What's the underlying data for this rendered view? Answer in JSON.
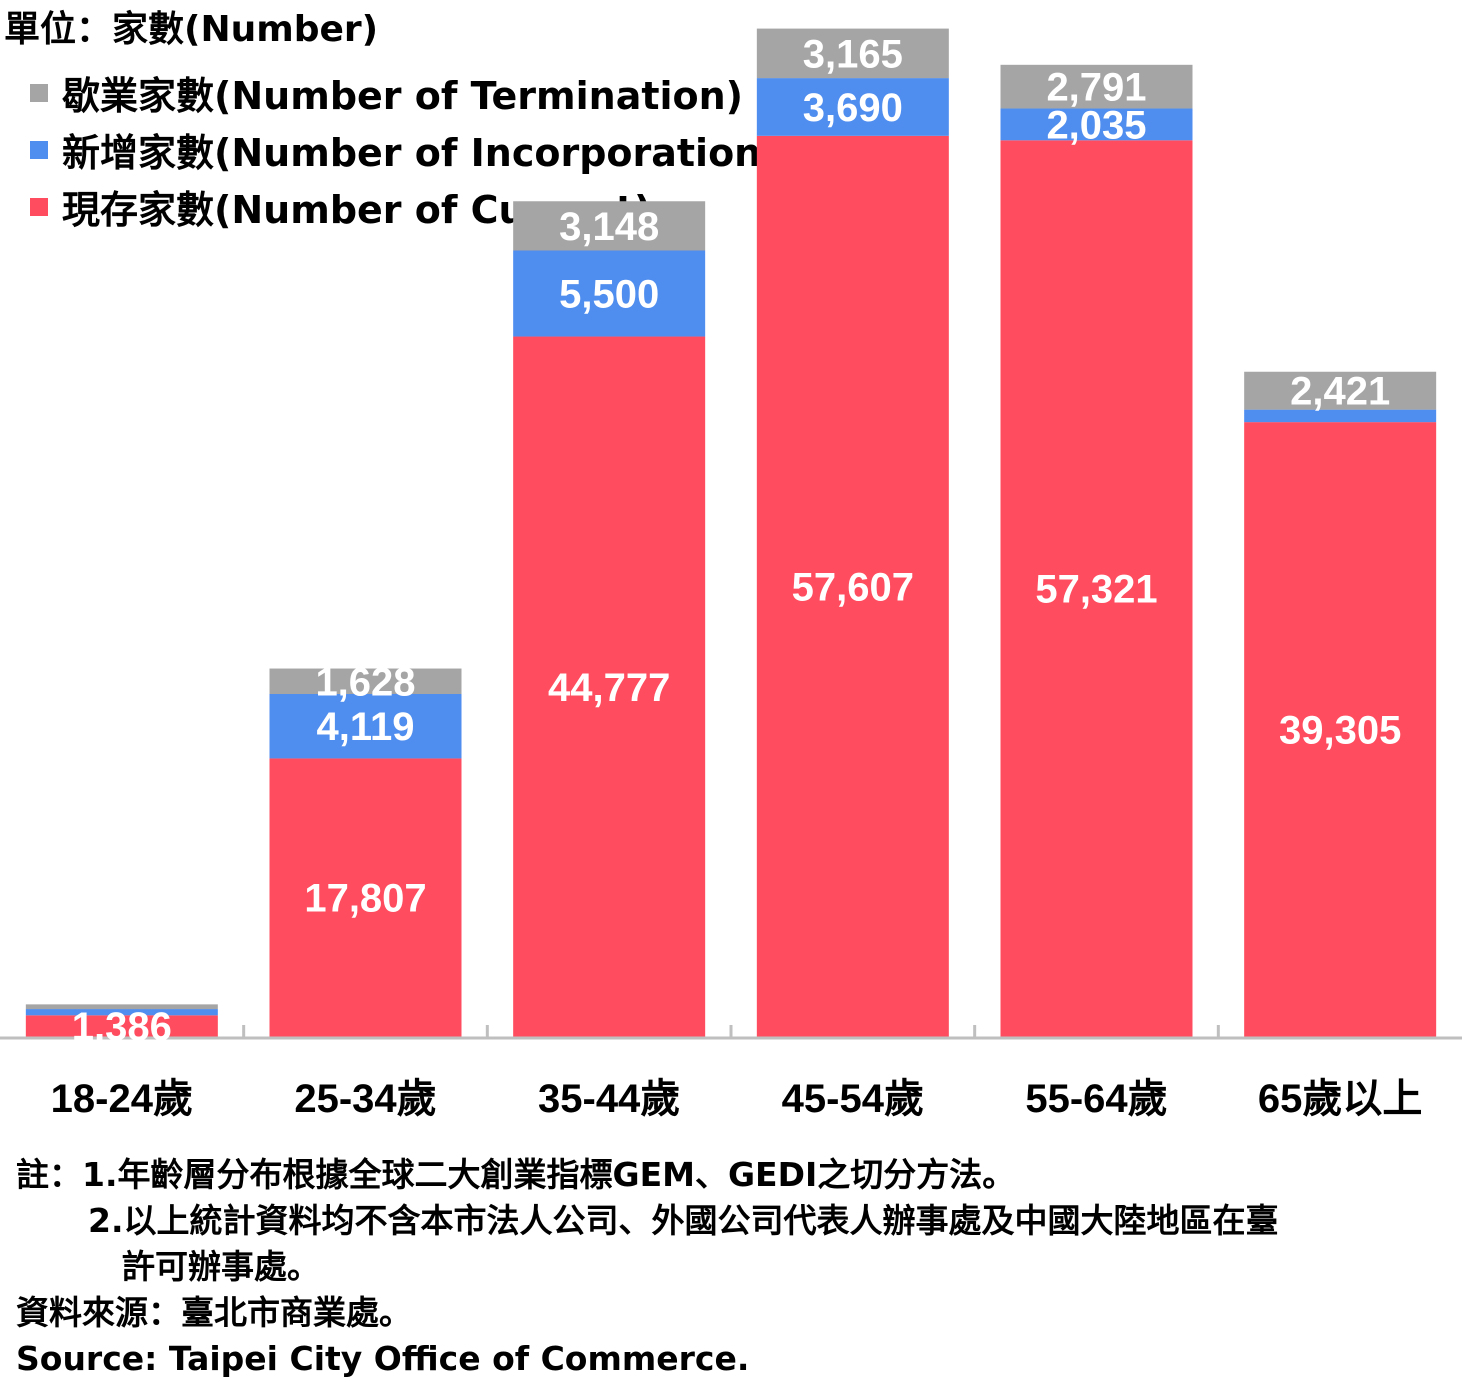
{
  "unit_label": "單位：家數(Number)",
  "legend": [
    {
      "label": "歇業家數(Number of Termination)",
      "color": "#a5a5a5"
    },
    {
      "label": "新增家數(Number of Incorporation)",
      "color": "#4f8def"
    },
    {
      "label": "現存家數(Number of Current)",
      "color": "#ff4c5e"
    }
  ],
  "notes": {
    "line1": "註：1.年齡層分布根據全球二大創業指標GEM、GEDI之切分方法。",
    "line2": "2.以上統計資料均不含本市法人公司、外國公司代表人辦事處及中國大陸地區在臺",
    "line3": "許可辦事處。",
    "line4": "資料來源：臺北市商業處。",
    "line5": "Source: Taipei City Office of Commerce."
  },
  "chart_data": {
    "type": "bar",
    "stacked": true,
    "categories": [
      "18-24歲",
      "25-34歲",
      "35-44歲",
      "45-54歲",
      "55-64歲",
      "65歲以上"
    ],
    "series": [
      {
        "name": "現存家數(Number of Current)",
        "color": "#ff4c5e",
        "values": [
          1386,
          17807,
          44777,
          57607,
          57321,
          39305
        ],
        "labels": [
          "1,386",
          "17,807",
          "44,777",
          "57,607",
          "57,321",
          "39,305"
        ]
      },
      {
        "name": "新增家數(Number of Incorporation)",
        "color": "#4f8def",
        "values": [
          400,
          4119,
          5500,
          3690,
          2035,
          800
        ],
        "labels": [
          "",
          "4,119",
          "5,500",
          "3,690",
          "2,035",
          ""
        ]
      },
      {
        "name": "歇業家數(Number of Termination)",
        "color": "#a5a5a5",
        "values": [
          300,
          1628,
          3148,
          3165,
          2791,
          2421
        ],
        "labels": [
          "",
          "1,628",
          "3,148",
          "3,165",
          "2,791",
          "2,421"
        ]
      }
    ],
    "ylim": [
      0,
      64500
    ],
    "legend_position": "top-left",
    "grid": false
  }
}
